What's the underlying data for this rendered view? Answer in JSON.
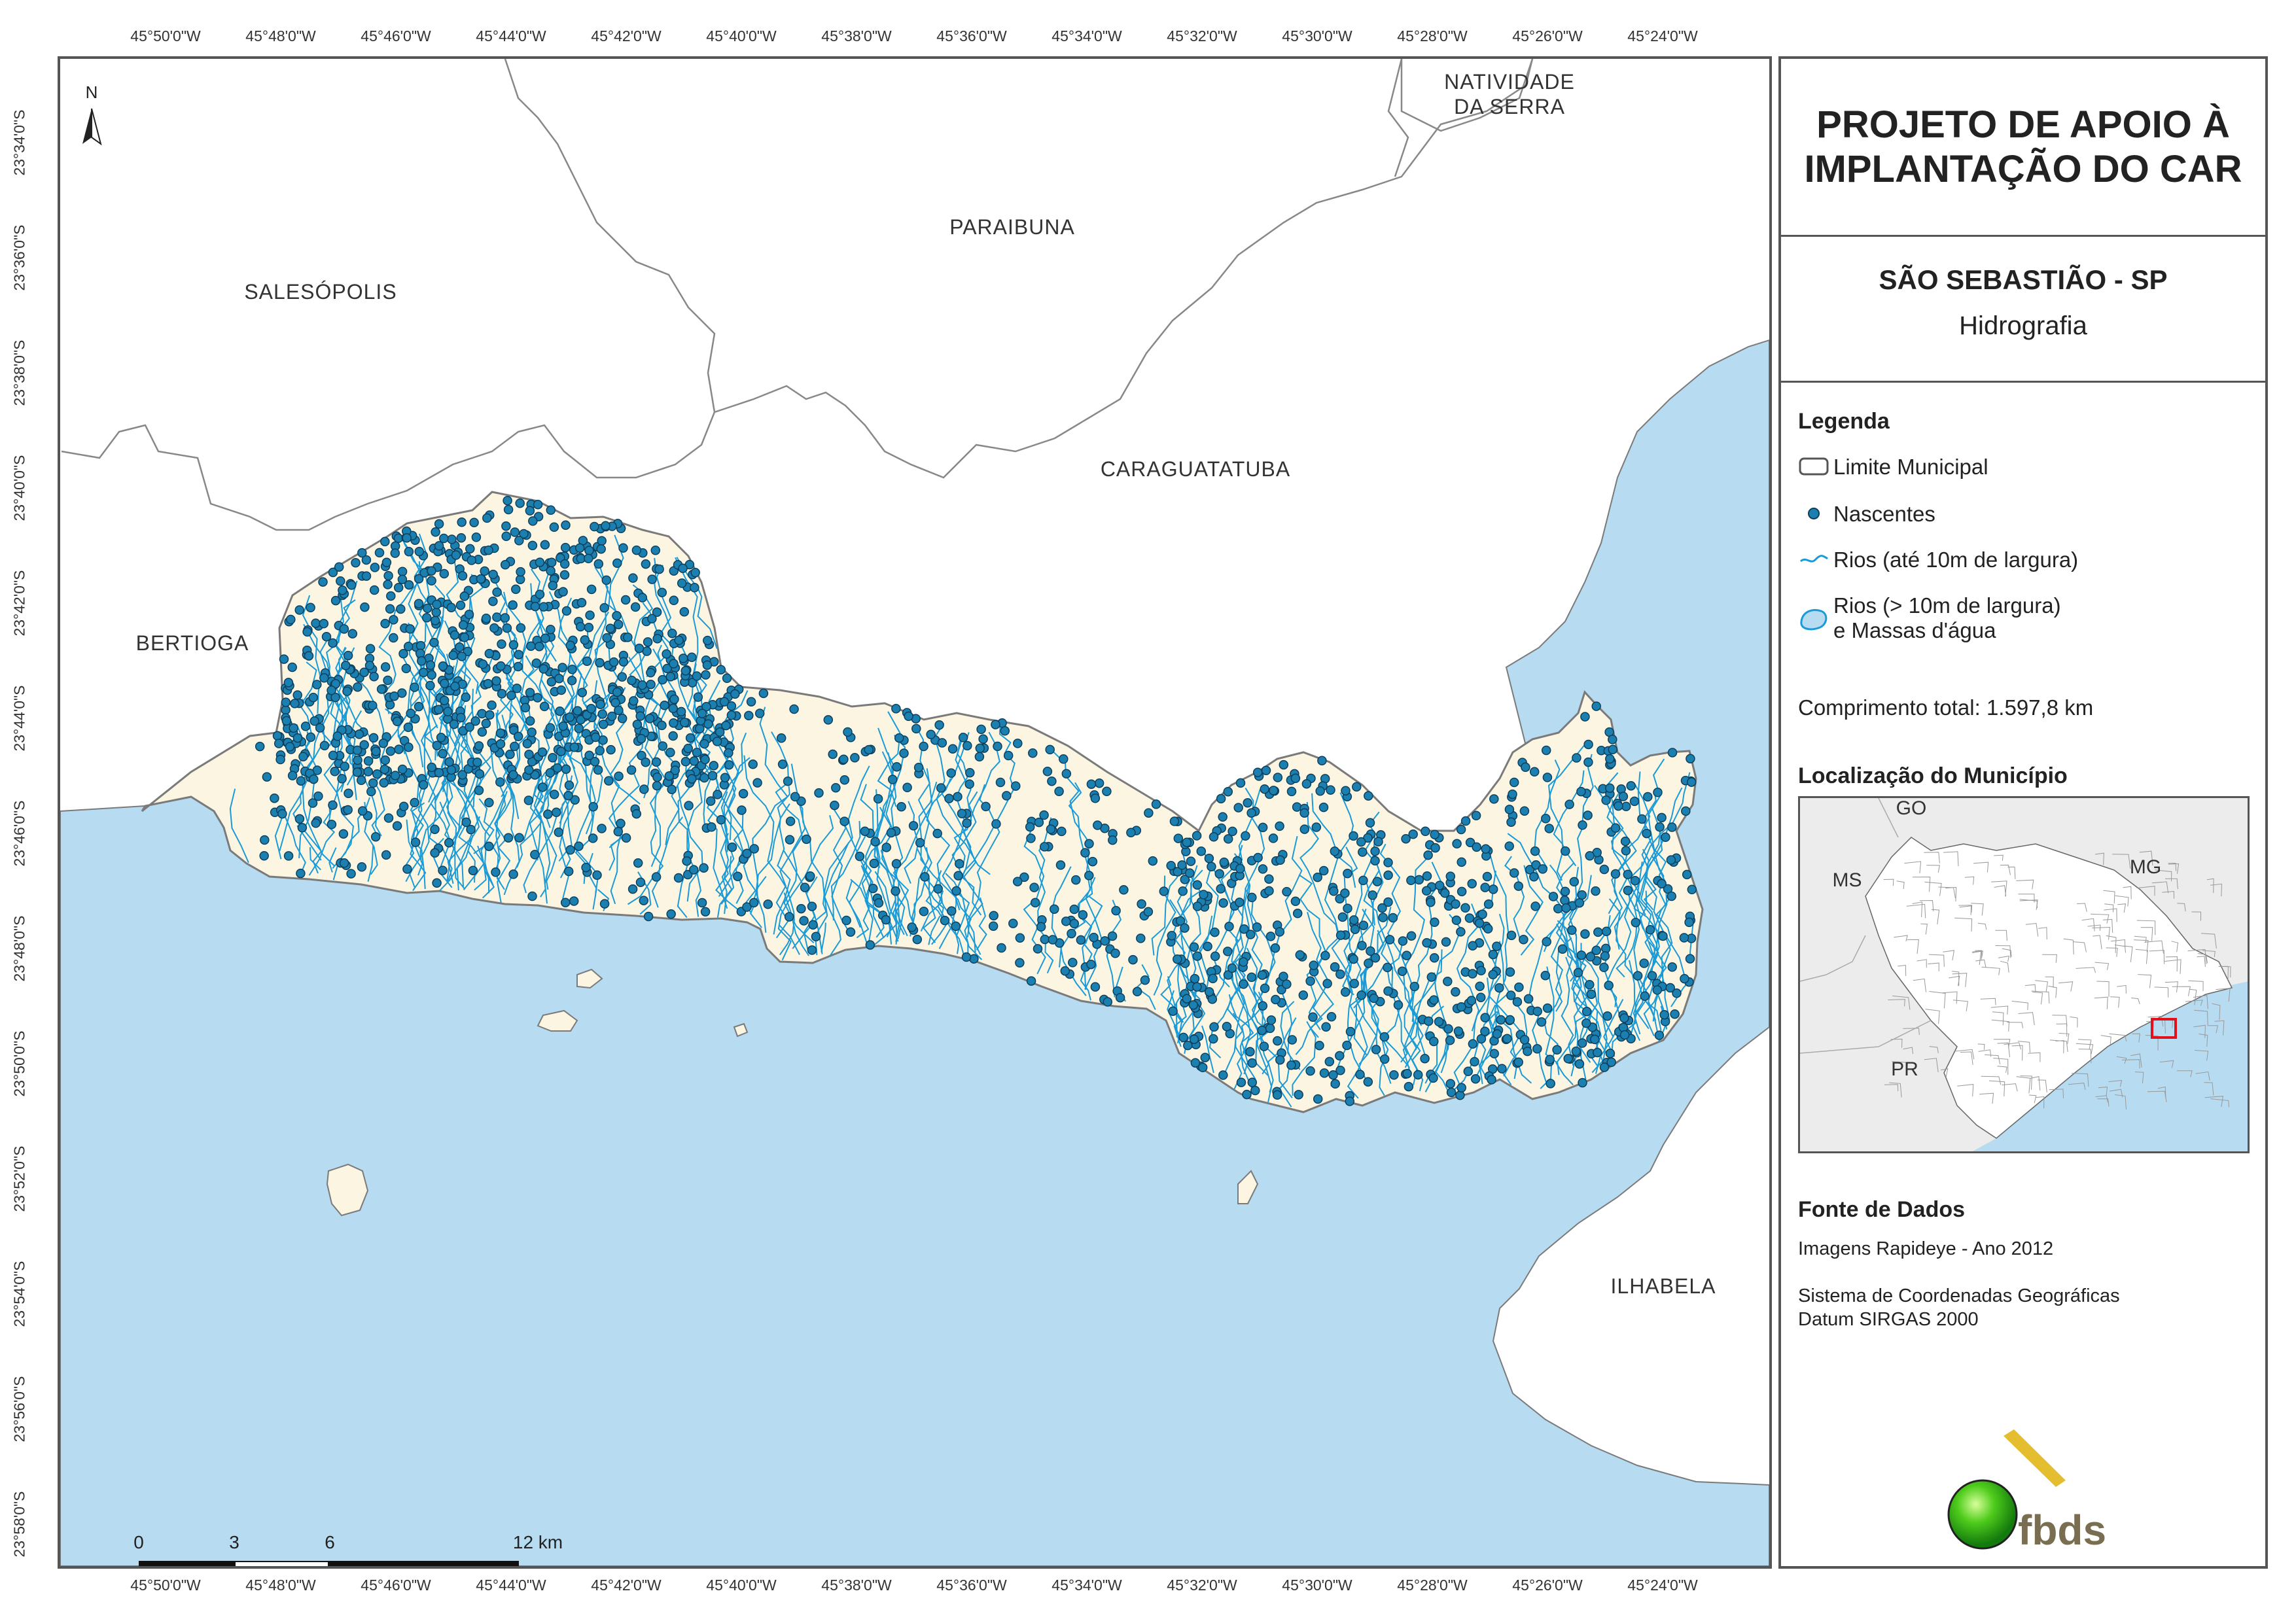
{
  "map": {
    "north_label": "N",
    "top_lon_labels": [
      "45°50'0\"W",
      "45°48'0\"W",
      "45°46'0\"W",
      "45°44'0\"W",
      "45°42'0\"W",
      "45°40'0\"W",
      "45°38'0\"W",
      "45°36'0\"W",
      "45°34'0\"W",
      "45°32'0\"W",
      "45°30'0\"W",
      "45°28'0\"W",
      "45°26'0\"W",
      "45°24'0\"W"
    ],
    "bottom_lon_labels": [
      "45°50'0\"W",
      "45°48'0\"W",
      "45°46'0\"W",
      "45°44'0\"W",
      "45°42'0\"W",
      "45°40'0\"W",
      "45°38'0\"W",
      "45°36'0\"W",
      "45°34'0\"W",
      "45°32'0\"W",
      "45°30'0\"W",
      "45°28'0\"W",
      "45°26'0\"W",
      "45°24'0\"W"
    ],
    "lat_labels": [
      "23°34'0\"S",
      "23°36'0\"S",
      "23°38'0\"S",
      "23°40'0\"S",
      "23°42'0\"S",
      "23°44'0\"S",
      "23°46'0\"S",
      "23°48'0\"S",
      "23°50'0\"S",
      "23°52'0\"S",
      "23°54'0\"S",
      "23°56'0\"S",
      "23°58'0\"S"
    ],
    "cities": {
      "natividade": "NATIVIDADE\nDA SERRA",
      "paraibuna": "PARAIBUNA",
      "salesopolis": "SALESÓPOLIS",
      "caraguatatuba": "CARAGUATATUBA",
      "bertioga": "BERTIOGA",
      "ilhabela": "ILHABELA"
    },
    "scale": {
      "ticks": [
        "0",
        "3",
        "6",
        "12 km"
      ]
    },
    "colors": {
      "sea": "#b7dbf0",
      "municipality": "#fbf5e2",
      "river": "#1a9ad6",
      "spring": "#1b7fb0",
      "border": "#7a7a7a"
    }
  },
  "panel": {
    "title_line1": "PROJETO DE APOIO À",
    "title_line2": "IMPLANTAÇÃO DO CAR",
    "municipality": "SÃO SEBASTIÃO - SP",
    "theme": "Hidrografia",
    "legend_heading": "Legenda",
    "legend": {
      "limite": "Limite Municipal",
      "nascentes": "Nascentes",
      "rios_small": "Rios (até 10m de largura)",
      "rios_large_1": "Rios (> 10m de largura)",
      "rios_large_2": "e Massas d'água"
    },
    "length_text": "Comprimento total: 1.597,8 km",
    "location_heading": "Localização do Município",
    "inset_labels": {
      "go": "GO",
      "ms": "MS",
      "mg": "MG",
      "pr": "PR"
    },
    "sources_heading": "Fonte de Dados",
    "source_1": "Imagens Rapideye - Ano 2012",
    "source_2": "Sistema de Coordenadas Geográficas",
    "source_3": "Datum SIRGAS 2000",
    "logo_text": "fbds"
  }
}
